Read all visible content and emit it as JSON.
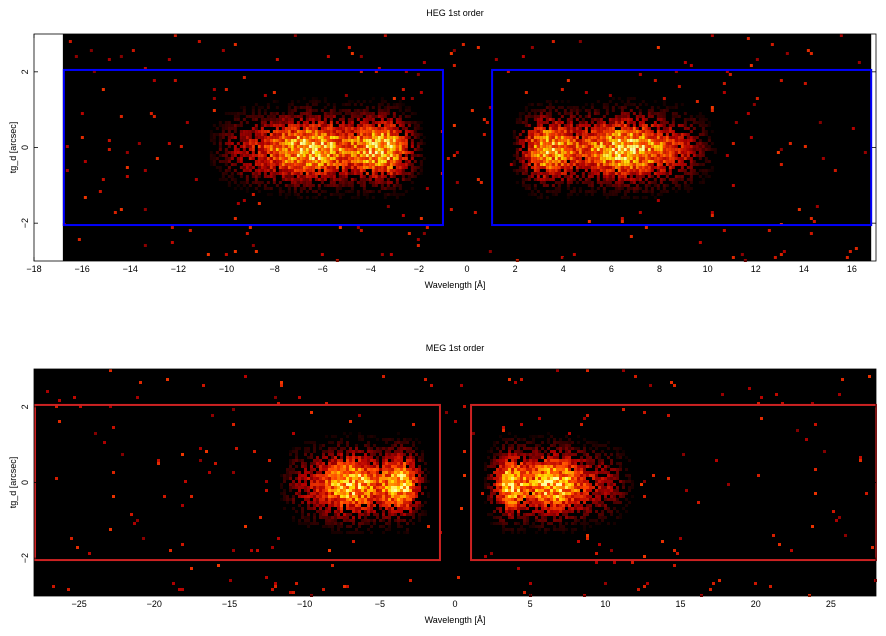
{
  "chart_data": [
    {
      "type": "heatmap",
      "title": "HEG 1st order",
      "xlabel": "Wavelength [Å]",
      "ylabel": "tg_d [arcsec]",
      "xlim": [
        -18,
        17
      ],
      "ylim": [
        -3,
        3
      ],
      "data_xlim": [
        -16.8,
        16.8
      ],
      "xticks": [
        -18,
        -16,
        -14,
        -12,
        -10,
        -8,
        -6,
        -4,
        -2,
        0,
        2,
        4,
        6,
        8,
        10,
        12,
        14,
        16
      ],
      "yticks": [
        -2,
        0,
        2
      ],
      "regions": [
        {
          "x": [
            -16.8,
            -1.0
          ],
          "y": [
            -2.05,
            2.05
          ],
          "color": "#0000ff"
        },
        {
          "x": [
            1.0,
            16.8
          ],
          "y": [
            -2.05,
            2.05
          ],
          "color": "#0000ff"
        }
      ],
      "emission": [
        {
          "x_range": [
            -11,
            -1.7
          ],
          "peak_x": [
            -3.5,
            -6.5
          ],
          "y_width": 0.55
        },
        {
          "x_range": [
            1.7,
            10.5
          ],
          "peak_x": [
            2.8,
            6.5
          ],
          "y_width": 0.55
        }
      ],
      "grid": false,
      "colormap": "heat"
    },
    {
      "type": "heatmap",
      "title": "MEG 1st order",
      "xlabel": "Wavelength [Å]",
      "ylabel": "tg_d [arcsec]",
      "xlim": [
        -28,
        28
      ],
      "ylim": [
        -3,
        3
      ],
      "data_xlim": [
        -28,
        28
      ],
      "xticks": [
        -25,
        -20,
        -15,
        -10,
        -5,
        0,
        5,
        10,
        15,
        20,
        25
      ],
      "yticks": [
        -2,
        0,
        2
      ],
      "regions": [
        {
          "x": [
            -28,
            -1.0
          ],
          "y": [
            -2.05,
            2.05
          ],
          "color": "#cc2222"
        },
        {
          "x": [
            1.0,
            28
          ],
          "y": [
            -2.05,
            2.05
          ],
          "color": "#cc2222"
        }
      ],
      "emission": [
        {
          "x_range": [
            -12,
            -1.7
          ],
          "peak_x": [
            -3.5,
            -7.0
          ],
          "y_width": 0.55
        },
        {
          "x_range": [
            1.7,
            12
          ],
          "peak_x": [
            3.3,
            6.5
          ],
          "y_width": 0.55
        }
      ],
      "grid": false,
      "colormap": "heat"
    }
  ]
}
